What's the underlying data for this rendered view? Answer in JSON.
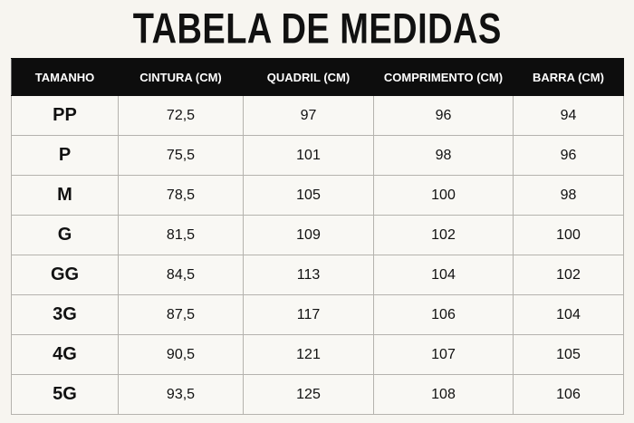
{
  "title": "TABELA DE MEDIDAS",
  "table": {
    "header": [
      "TAMANHO",
      "CINTURA (CM)",
      "QUADRIL (CM)",
      "COMPRIMENTO (CM)",
      "BARRA (CM)"
    ],
    "rows": [
      [
        "PP",
        "72,5",
        "97",
        "96",
        "94"
      ],
      [
        "P",
        "75,5",
        "101",
        "98",
        "96"
      ],
      [
        "M",
        "78,5",
        "105",
        "100",
        "98"
      ],
      [
        "G",
        "81,5",
        "109",
        "102",
        "100"
      ],
      [
        "GG",
        "84,5",
        "113",
        "104",
        "102"
      ],
      [
        "3G",
        "87,5",
        "117",
        "106",
        "104"
      ],
      [
        "4G",
        "90,5",
        "121",
        "107",
        "105"
      ],
      [
        "5G",
        "93,5",
        "125",
        "108",
        "106"
      ]
    ]
  }
}
